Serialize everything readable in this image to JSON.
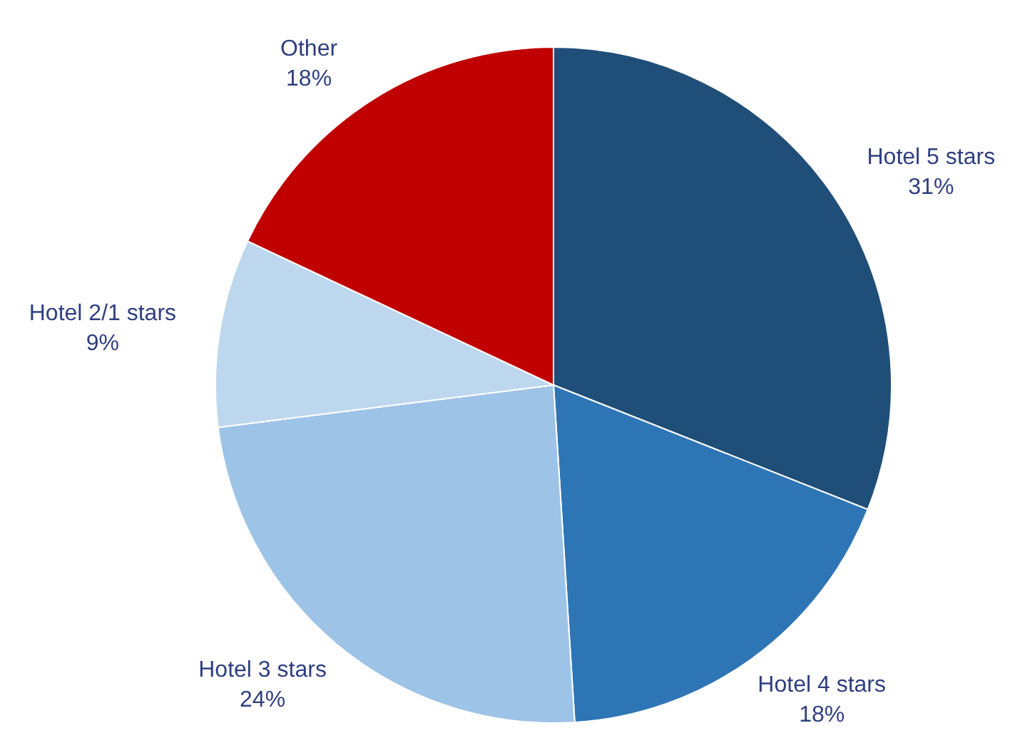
{
  "chart_data": {
    "type": "pie",
    "categories": [
      "Hotel 5 stars",
      "Hotel 4 stars",
      "Hotel 3 stars",
      "Hotel 2/1 stars",
      "Other"
    ],
    "values": [
      31,
      18,
      24,
      9,
      18
    ],
    "colors": [
      "#1f4e79",
      "#2e75b6",
      "#9dc3e6",
      "#bdd7ee",
      "#c00000"
    ],
    "value_labels": [
      "31%",
      "18%",
      "24%",
      "9%",
      "18%"
    ]
  }
}
